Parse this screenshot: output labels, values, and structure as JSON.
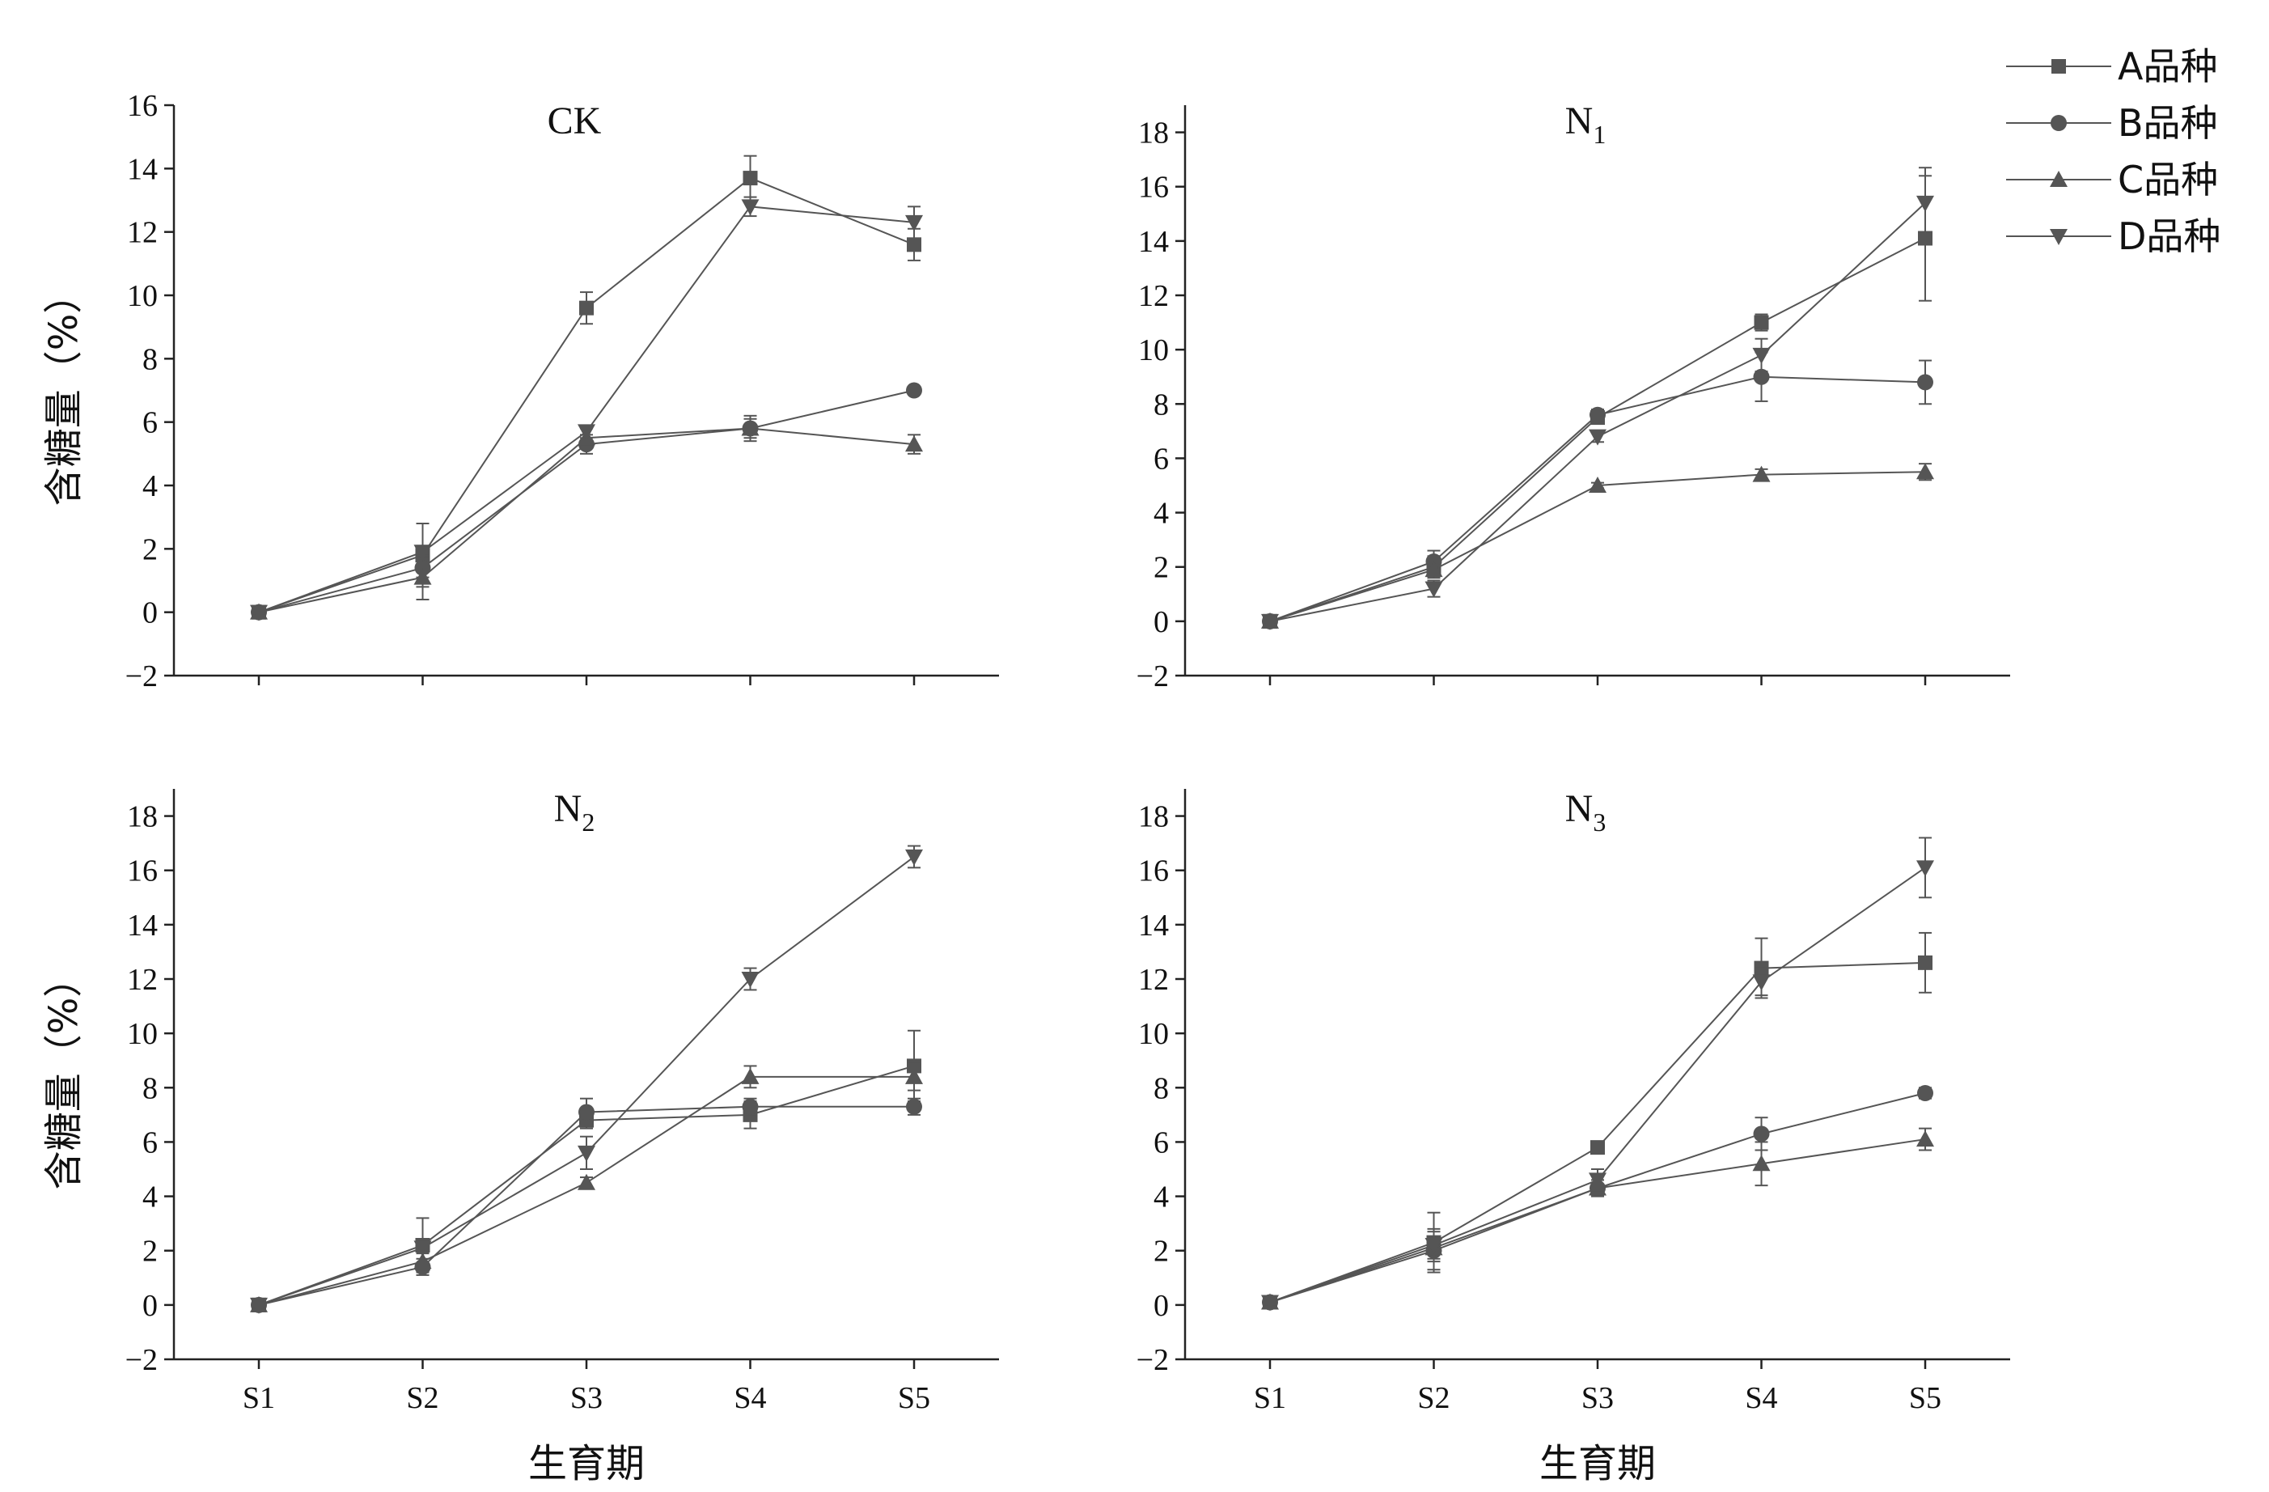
{
  "colors": {
    "line": "#555555",
    "marker": "#555555",
    "axis": "#222222"
  },
  "legend": {
    "position": "top-right",
    "items": [
      {
        "label": "A品种",
        "marker": "square"
      },
      {
        "label": "B品种",
        "marker": "circle"
      },
      {
        "label": "C品种",
        "marker": "triangle-up"
      },
      {
        "label": "D品种",
        "marker": "triangle-down"
      }
    ]
  },
  "chart_data": [
    {
      "type": "line",
      "title": "CK",
      "title_subscript": "",
      "ylabel": "含糖量（%）",
      "xlabel": "",
      "categories": [
        "S1",
        "S2",
        "S3",
        "S4",
        "S5"
      ],
      "ylim": [
        -2,
        16
      ],
      "yticks": [
        -2,
        0,
        2,
        4,
        6,
        8,
        10,
        12,
        14,
        16
      ],
      "show_xticklabels": false,
      "series": [
        {
          "name": "A品种",
          "values": [
            0,
            1.8,
            9.6,
            13.7,
            11.6
          ],
          "errors": [
            0.1,
            1.0,
            0.5,
            0.7,
            0.5
          ]
        },
        {
          "name": "B品种",
          "values": [
            0,
            1.4,
            5.3,
            5.8,
            7.0
          ],
          "errors": [
            0.1,
            0.3,
            0.3,
            0.3,
            0.1
          ]
        },
        {
          "name": "C品种",
          "values": [
            0,
            1.1,
            5.5,
            5.8,
            5.3
          ],
          "errors": [
            0.1,
            0.7,
            0.3,
            0.4,
            0.3
          ]
        },
        {
          "name": "D品种",
          "values": [
            0,
            1.9,
            5.7,
            12.8,
            12.3
          ],
          "errors": [
            0.1,
            0.2,
            0.2,
            0.3,
            0.5
          ]
        }
      ]
    },
    {
      "type": "line",
      "title": "N",
      "title_subscript": "1",
      "ylabel": "",
      "xlabel": "",
      "categories": [
        "S1",
        "S2",
        "S3",
        "S4",
        "S5"
      ],
      "ylim": [
        -2,
        19
      ],
      "yticks": [
        -2,
        0,
        2,
        4,
        6,
        8,
        10,
        12,
        14,
        16,
        18
      ],
      "show_xticklabels": false,
      "series": [
        {
          "name": "A品种",
          "values": [
            0,
            2.0,
            7.5,
            11.0,
            14.1
          ],
          "errors": [
            0.1,
            0.4,
            0.2,
            0.3,
            2.3
          ]
        },
        {
          "name": "B品种",
          "values": [
            0,
            2.2,
            7.6,
            9.0,
            8.8
          ],
          "errors": [
            0.1,
            0.4,
            0.2,
            0.9,
            0.8
          ]
        },
        {
          "name": "C品种",
          "values": [
            0,
            1.9,
            5.0,
            5.4,
            5.5
          ],
          "errors": [
            0.1,
            0.3,
            0.1,
            0.2,
            0.3
          ]
        },
        {
          "name": "D品种",
          "values": [
            0,
            1.2,
            6.8,
            9.8,
            15.4
          ],
          "errors": [
            0.1,
            0.3,
            0.2,
            0.6,
            1.3
          ]
        }
      ]
    },
    {
      "type": "line",
      "title": "N",
      "title_subscript": "2",
      "ylabel": "含糖量（%）",
      "xlabel": "生育期",
      "categories": [
        "S1",
        "S2",
        "S3",
        "S4",
        "S5"
      ],
      "ylim": [
        -2,
        19
      ],
      "yticks": [
        -2,
        0,
        2,
        4,
        6,
        8,
        10,
        12,
        14,
        16,
        18
      ],
      "show_xticklabels": true,
      "series": [
        {
          "name": "A品种",
          "values": [
            0,
            2.2,
            6.8,
            7.0,
            8.8
          ],
          "errors": [
            0.1,
            1.0,
            0.3,
            0.5,
            1.3
          ]
        },
        {
          "name": "B品种",
          "values": [
            0,
            1.4,
            7.1,
            7.3,
            7.3
          ],
          "errors": [
            0.1,
            0.3,
            0.5,
            0.3,
            0.3
          ]
        },
        {
          "name": "C品种",
          "values": [
            0,
            1.6,
            4.5,
            8.4,
            8.4
          ],
          "errors": [
            0.1,
            0.3,
            0.2,
            0.4,
            0.5
          ]
        },
        {
          "name": "D品种",
          "values": [
            0,
            2.1,
            5.6,
            12.0,
            16.5
          ],
          "errors": [
            0.1,
            0.2,
            0.6,
            0.4,
            0.4
          ]
        }
      ]
    },
    {
      "type": "line",
      "title": "N",
      "title_subscript": "3",
      "ylabel": "",
      "xlabel": "生育期",
      "categories": [
        "S1",
        "S2",
        "S3",
        "S4",
        "S5"
      ],
      "ylim": [
        -2,
        19
      ],
      "yticks": [
        -2,
        0,
        2,
        4,
        6,
        8,
        10,
        12,
        14,
        16,
        18
      ],
      "show_xticklabels": true,
      "series": [
        {
          "name": "A品种",
          "values": [
            0.1,
            2.3,
            5.8,
            12.4,
            12.6
          ],
          "errors": [
            0.1,
            1.1,
            0.2,
            1.1,
            1.1
          ]
        },
        {
          "name": "B品种",
          "values": [
            0.1,
            2.0,
            4.3,
            6.3,
            7.8
          ],
          "errors": [
            0.1,
            0.7,
            0.3,
            0.6,
            0.2
          ]
        },
        {
          "name": "C品种",
          "values": [
            0.1,
            2.1,
            4.3,
            5.2,
            6.1
          ],
          "errors": [
            0.1,
            0.4,
            0.3,
            0.8,
            0.4
          ]
        },
        {
          "name": "D品种",
          "values": [
            0.1,
            2.2,
            4.6,
            11.9,
            16.1
          ],
          "errors": [
            0.1,
            0.6,
            0.4,
            0.5,
            1.1
          ]
        }
      ]
    }
  ]
}
